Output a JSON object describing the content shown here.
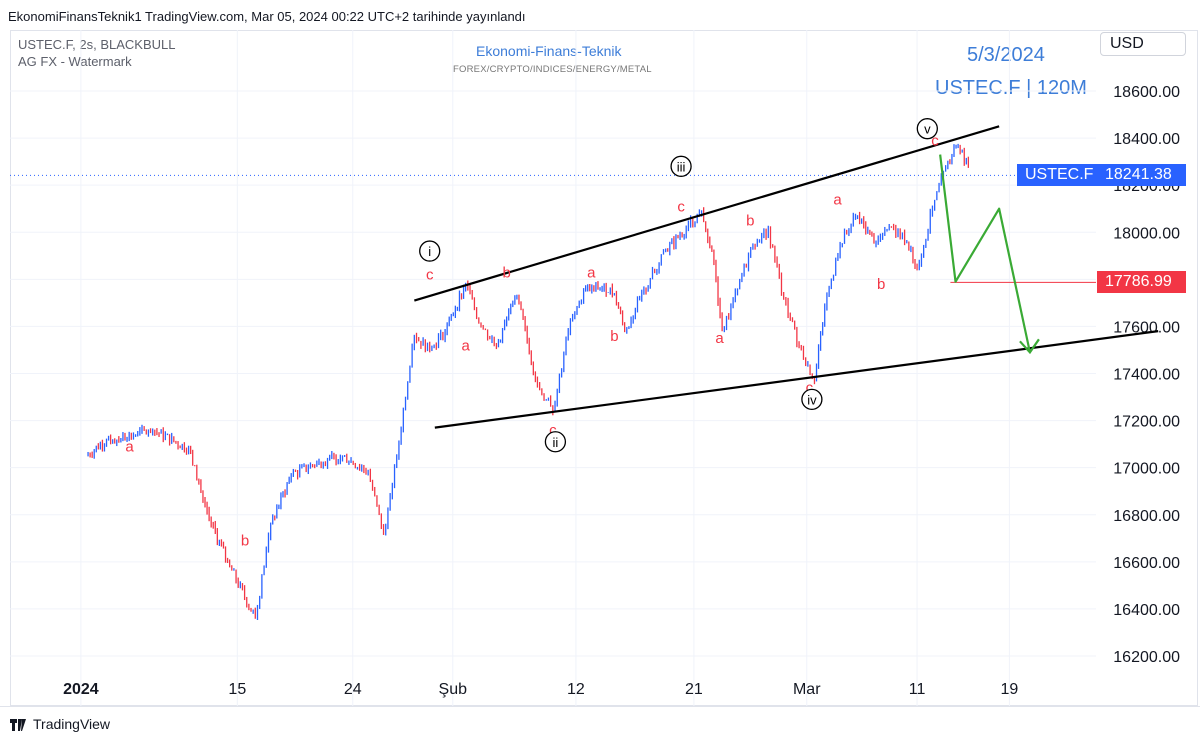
{
  "header": {
    "caption": "EkonomiFinansTeknik1 TradingView.com, Mar 05, 2024 00:22 UTC+2 tarihinde yayınlandı"
  },
  "legend": {
    "line1": "USTEC.F, 2s, BLACKBULL",
    "line2": "AG FX - Watermark"
  },
  "watermark": {
    "title": "Ekonomi-Finans-Teknik",
    "subtitle": "FOREX/CRYPTO/INDICES/ENERGY/METAL"
  },
  "overlay": {
    "date": "5/3/2024",
    "symbol": "USTEC.F | 120M"
  },
  "currency": "USD",
  "footer": {
    "brand": "TradingView"
  },
  "colors": {
    "up": "#2962ff",
    "down": "#f23645",
    "accent": "#3d7dd8",
    "projection": "#3aaa35"
  },
  "chart_data": {
    "type": "line",
    "instrument": "USTEC.F",
    "ylim": [
      16100,
      18700
    ],
    "y_ticks": [
      "16200.00",
      "16400.00",
      "16600.00",
      "16800.00",
      "17000.00",
      "17200.00",
      "17400.00",
      "17600.00",
      "17800.00",
      "18000.00",
      "18200.00",
      "18400.00",
      "18600.00"
    ],
    "x_ticks": [
      "2024",
      "15",
      "24",
      "Şub",
      "12",
      "21",
      "Mar",
      "11",
      "19"
    ],
    "series": [
      {
        "values": [
          [
            0,
            17050
          ],
          [
            4,
            17120
          ],
          [
            8,
            17130
          ],
          [
            13,
            17160
          ],
          [
            20,
            17080
          ],
          [
            24,
            16780
          ],
          [
            28,
            16580
          ],
          [
            33,
            16360
          ],
          [
            36,
            16760
          ],
          [
            40,
            16970
          ],
          [
            45,
            17020
          ],
          [
            50,
            17050
          ],
          [
            55,
            16980
          ],
          [
            58,
            16720
          ],
          [
            61,
            17100
          ],
          [
            64,
            17560
          ],
          [
            67,
            17500
          ],
          [
            70,
            17580
          ],
          [
            74,
            17780
          ],
          [
            77,
            17600
          ],
          [
            80,
            17520
          ],
          [
            84,
            17730
          ],
          [
            88,
            17350
          ],
          [
            91,
            17240
          ],
          [
            94,
            17580
          ],
          [
            97,
            17750
          ],
          [
            101,
            17770
          ],
          [
            103,
            17740
          ],
          [
            105,
            17580
          ],
          [
            110,
            17800
          ],
          [
            113,
            17920
          ],
          [
            117,
            18020
          ],
          [
            120,
            18090
          ],
          [
            122,
            17920
          ],
          [
            124,
            17580
          ],
          [
            127,
            17760
          ],
          [
            130,
            17950
          ],
          [
            133,
            18010
          ],
          [
            136,
            17720
          ],
          [
            139,
            17520
          ],
          [
            142,
            17370
          ],
          [
            144,
            17680
          ],
          [
            147,
            17950
          ],
          [
            150,
            18070
          ],
          [
            154,
            17960
          ],
          [
            157,
            18020
          ],
          [
            160,
            17960
          ],
          [
            162,
            17840
          ],
          [
            165,
            18100
          ],
          [
            168,
            18300
          ],
          [
            170,
            18370
          ],
          [
            172,
            18280
          ]
        ]
      }
    ],
    "levels": [
      {
        "label": "USTEC.F",
        "value": "18241.38",
        "price": 18241.38
      },
      {
        "value": "17786.99",
        "price": 17786.99
      }
    ],
    "wave_labels": [
      {
        "text": "a",
        "x": 8.5,
        "price": 17090
      },
      {
        "text": "b",
        "x": 31,
        "price": 16690
      },
      {
        "text": "i",
        "x": 67,
        "price": 17920
      },
      {
        "text": "c",
        "x": 67,
        "price": 17820
      },
      {
        "text": "a",
        "x": 74,
        "price": 17520
      },
      {
        "text": "b",
        "x": 82,
        "price": 17830
      },
      {
        "text": "c",
        "x": 91,
        "price": 17160
      },
      {
        "text": "ii",
        "x": 91.5,
        "price": 17110
      },
      {
        "text": "a",
        "x": 98.5,
        "price": 17830
      },
      {
        "text": "b",
        "x": 103,
        "price": 17560
      },
      {
        "text": "iii",
        "x": 116,
        "price": 18280
      },
      {
        "text": "c",
        "x": 116,
        "price": 18110
      },
      {
        "text": "a",
        "x": 123.5,
        "price": 17550
      },
      {
        "text": "b",
        "x": 129.5,
        "price": 18050
      },
      {
        "text": "c",
        "x": 141,
        "price": 17340
      },
      {
        "text": "iv",
        "x": 141.5,
        "price": 17290
      },
      {
        "text": "a",
        "x": 146.5,
        "price": 18140
      },
      {
        "text": "b",
        "x": 155,
        "price": 17780
      },
      {
        "text": "v",
        "x": 164,
        "price": 18440
      },
      {
        "text": "c",
        "x": 165.5,
        "price": 18390
      }
    ],
    "trendlines": [
      {
        "from": [
          64,
          17710
        ],
        "to": [
          178,
          18450
        ]
      },
      {
        "from": [
          68,
          17170
        ],
        "to": [
          209,
          17580
        ]
      }
    ],
    "projection": [
      [
        166.5,
        18330
      ],
      [
        169.5,
        17790
      ],
      [
        178,
        18100
      ],
      [
        184,
        17490
      ]
    ]
  }
}
